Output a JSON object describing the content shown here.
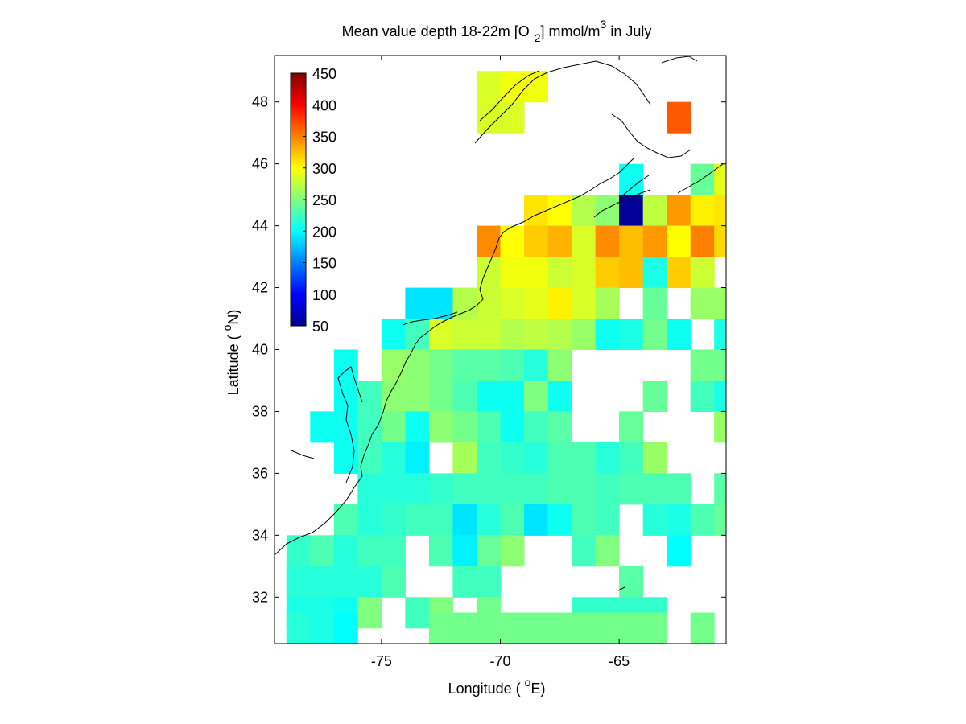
{
  "title": {
    "prefix": "Mean value depth 18-22m [O",
    "sub": "2",
    "unit": "] mmol/m",
    "sup": "3",
    "suffix": " in July"
  },
  "xlabel": {
    "prefix": "Longitude ( ",
    "sup": "o",
    "suffix": "E)"
  },
  "ylabel": {
    "prefix": "Latitude ( ",
    "sup": "o",
    "suffix": "N)"
  },
  "chart_data": {
    "type": "heatmap",
    "x_range": [
      -79.5,
      -60.5
    ],
    "y_range": [
      30.5,
      49.5
    ],
    "x_ticks": [
      -75,
      -70,
      -65
    ],
    "y_ticks": [
      32,
      34,
      36,
      38,
      40,
      42,
      44,
      46,
      48
    ],
    "x_tick_labels": [
      "-75",
      "-70",
      "-65"
    ],
    "y_tick_labels": [
      "32",
      "34",
      "36",
      "38",
      "40",
      "42",
      "44",
      "46",
      "48"
    ],
    "colorbar": {
      "ticks": [
        50,
        100,
        150,
        200,
        250,
        300,
        350,
        400,
        450
      ],
      "tick_labels": [
        "50",
        "100",
        "150",
        "200",
        "250",
        "300",
        "350",
        "400",
        "450"
      ],
      "range": [
        50,
        450
      ],
      "colormap": "jet",
      "placement": "top-left inside axes"
    },
    "cell_size_deg": 1,
    "cell_value_note": "value of 1x1 degree cell, keyed by lower-left corner [lon, lat]",
    "cells": [
      [
        -71,
        48,
        285
      ],
      [
        -70,
        48,
        295
      ],
      [
        -69,
        48,
        295
      ],
      [
        -71,
        47,
        285
      ],
      [
        -70,
        47,
        285
      ],
      [
        -63,
        47,
        365
      ],
      [
        -65,
        45,
        205
      ],
      [
        -62,
        45,
        240
      ],
      [
        -61,
        45,
        290
      ],
      [
        -69,
        44,
        310
      ],
      [
        -68,
        44,
        300
      ],
      [
        -67,
        44,
        270
      ],
      [
        -66,
        44,
        255
      ],
      [
        -65,
        44,
        60
      ],
      [
        -64,
        44,
        275
      ],
      [
        -63,
        44,
        340
      ],
      [
        -62,
        44,
        305
      ],
      [
        -61,
        44,
        310
      ],
      [
        -71,
        43,
        345
      ],
      [
        -70,
        43,
        300
      ],
      [
        -69,
        43,
        320
      ],
      [
        -68,
        43,
        330
      ],
      [
        -67,
        43,
        285
      ],
      [
        -66,
        43,
        345
      ],
      [
        -65,
        43,
        325
      ],
      [
        -64,
        43,
        340
      ],
      [
        -63,
        43,
        300
      ],
      [
        -62,
        43,
        350
      ],
      [
        -61,
        43,
        315
      ],
      [
        -71,
        42,
        280
      ],
      [
        -70,
        42,
        295
      ],
      [
        -69,
        42,
        295
      ],
      [
        -68,
        42,
        280
      ],
      [
        -67,
        42,
        285
      ],
      [
        -66,
        42,
        320
      ],
      [
        -65,
        42,
        325
      ],
      [
        -64,
        42,
        210
      ],
      [
        -63,
        42,
        320
      ],
      [
        -62,
        42,
        280
      ],
      [
        -74,
        41,
        190
      ],
      [
        -73,
        41,
        190
      ],
      [
        -72,
        41,
        270
      ],
      [
        -71,
        41,
        280
      ],
      [
        -70,
        41,
        285
      ],
      [
        -69,
        41,
        290
      ],
      [
        -68,
        41,
        305
      ],
      [
        -67,
        41,
        285
      ],
      [
        -66,
        41,
        265
      ],
      [
        -64,
        41,
        240
      ],
      [
        -62,
        41,
        260
      ],
      [
        -61,
        41,
        260
      ],
      [
        -75,
        40,
        205
      ],
      [
        -74,
        40,
        225
      ],
      [
        -73,
        40,
        285
      ],
      [
        -72,
        40,
        280
      ],
      [
        -71,
        40,
        280
      ],
      [
        -70,
        40,
        270
      ],
      [
        -69,
        40,
        275
      ],
      [
        -68,
        40,
        270
      ],
      [
        -67,
        40,
        260
      ],
      [
        -66,
        40,
        205
      ],
      [
        -65,
        40,
        210
      ],
      [
        -64,
        40,
        245
      ],
      [
        -63,
        40,
        205
      ],
      [
        -61,
        40,
        210
      ],
      [
        -77,
        39,
        205
      ],
      [
        -75,
        39,
        260
      ],
      [
        -74,
        39,
        255
      ],
      [
        -73,
        39,
        245
      ],
      [
        -72,
        39,
        235
      ],
      [
        -71,
        39,
        235
      ],
      [
        -70,
        39,
        230
      ],
      [
        -69,
        39,
        215
      ],
      [
        -68,
        39,
        255
      ],
      [
        -62,
        39,
        245
      ],
      [
        -61,
        39,
        245
      ],
      [
        -77,
        38,
        205
      ],
      [
        -76,
        38,
        225
      ],
      [
        -75,
        38,
        255
      ],
      [
        -74,
        38,
        255
      ],
      [
        -73,
        38,
        245
      ],
      [
        -72,
        38,
        230
      ],
      [
        -71,
        38,
        205
      ],
      [
        -70,
        38,
        205
      ],
      [
        -69,
        38,
        250
      ],
      [
        -68,
        38,
        205
      ],
      [
        -64,
        38,
        240
      ],
      [
        -62,
        38,
        225
      ],
      [
        -61,
        38,
        210
      ],
      [
        -78,
        37,
        205
      ],
      [
        -77,
        37,
        205
      ],
      [
        -76,
        37,
        225
      ],
      [
        -75,
        37,
        245
      ],
      [
        -74,
        37,
        205
      ],
      [
        -73,
        37,
        255
      ],
      [
        -72,
        37,
        245
      ],
      [
        -71,
        37,
        230
      ],
      [
        -70,
        37,
        205
      ],
      [
        -69,
        37,
        225
      ],
      [
        -68,
        37,
        235
      ],
      [
        -65,
        37,
        240
      ],
      [
        -61,
        37,
        260
      ],
      [
        -77,
        36,
        205
      ],
      [
        -76,
        36,
        225
      ],
      [
        -75,
        36,
        215
      ],
      [
        -74,
        36,
        195
      ],
      [
        -72,
        36,
        265
      ],
      [
        -71,
        36,
        225
      ],
      [
        -70,
        36,
        220
      ],
      [
        -69,
        36,
        215
      ],
      [
        -68,
        36,
        230
      ],
      [
        -67,
        36,
        230
      ],
      [
        -66,
        36,
        215
      ],
      [
        -65,
        36,
        225
      ],
      [
        -64,
        36,
        260
      ],
      [
        -76,
        35,
        215
      ],
      [
        -75,
        35,
        215
      ],
      [
        -74,
        35,
        215
      ],
      [
        -73,
        35,
        220
      ],
      [
        -72,
        35,
        225
      ],
      [
        -71,
        35,
        225
      ],
      [
        -70,
        35,
        225
      ],
      [
        -69,
        35,
        225
      ],
      [
        -68,
        35,
        230
      ],
      [
        -67,
        35,
        230
      ],
      [
        -66,
        35,
        225
      ],
      [
        -65,
        35,
        230
      ],
      [
        -64,
        35,
        230
      ],
      [
        -63,
        35,
        230
      ],
      [
        -61,
        35,
        235
      ],
      [
        -77,
        34,
        230
      ],
      [
        -76,
        34,
        215
      ],
      [
        -75,
        34,
        220
      ],
      [
        -74,
        34,
        225
      ],
      [
        -73,
        34,
        225
      ],
      [
        -72,
        34,
        190
      ],
      [
        -71,
        34,
        215
      ],
      [
        -70,
        34,
        230
      ],
      [
        -69,
        34,
        190
      ],
      [
        -68,
        34,
        205
      ],
      [
        -67,
        34,
        230
      ],
      [
        -66,
        34,
        225
      ],
      [
        -64,
        34,
        215
      ],
      [
        -63,
        34,
        210
      ],
      [
        -62,
        34,
        230
      ],
      [
        -61,
        34,
        240
      ],
      [
        -79,
        33,
        220
      ],
      [
        -78,
        33,
        230
      ],
      [
        -77,
        33,
        215
      ],
      [
        -76,
        33,
        225
      ],
      [
        -75,
        33,
        225
      ],
      [
        -73,
        33,
        230
      ],
      [
        -72,
        33,
        195
      ],
      [
        -71,
        33,
        240
      ],
      [
        -70,
        33,
        255
      ],
      [
        -67,
        33,
        225
      ],
      [
        -66,
        33,
        250
      ],
      [
        -63,
        33,
        200
      ],
      [
        -79,
        32,
        215
      ],
      [
        -78,
        32,
        215
      ],
      [
        -77,
        32,
        215
      ],
      [
        -76,
        32,
        215
      ],
      [
        -75,
        32,
        230
      ],
      [
        -72,
        32,
        225
      ],
      [
        -71,
        32,
        225
      ],
      [
        -65,
        32,
        235
      ],
      [
        -79,
        31,
        210
      ],
      [
        -78,
        31,
        210
      ],
      [
        -77,
        31,
        205
      ],
      [
        -76,
        31,
        250
      ],
      [
        -74,
        31,
        225
      ],
      [
        -73,
        31,
        250
      ],
      [
        -71,
        31,
        245
      ],
      [
        -67,
        31,
        220
      ],
      [
        -66,
        31,
        220
      ],
      [
        -65,
        31,
        220
      ],
      [
        -64,
        31,
        220
      ],
      [
        -79,
        30.5,
        215
      ],
      [
        -78,
        30.5,
        210
      ],
      [
        -77,
        30.5,
        200
      ],
      [
        -73,
        30.5,
        245
      ],
      [
        -72,
        30.5,
        245
      ],
      [
        -71,
        30.5,
        245
      ],
      [
        -70,
        30.5,
        245
      ],
      [
        -69,
        30.5,
        245
      ],
      [
        -68,
        30.5,
        245
      ],
      [
        -67,
        30.5,
        245
      ],
      [
        -66,
        30.5,
        245
      ],
      [
        -65,
        30.5,
        245
      ],
      [
        -64,
        30.5,
        245
      ],
      [
        -62,
        30.5,
        245
      ]
    ]
  }
}
